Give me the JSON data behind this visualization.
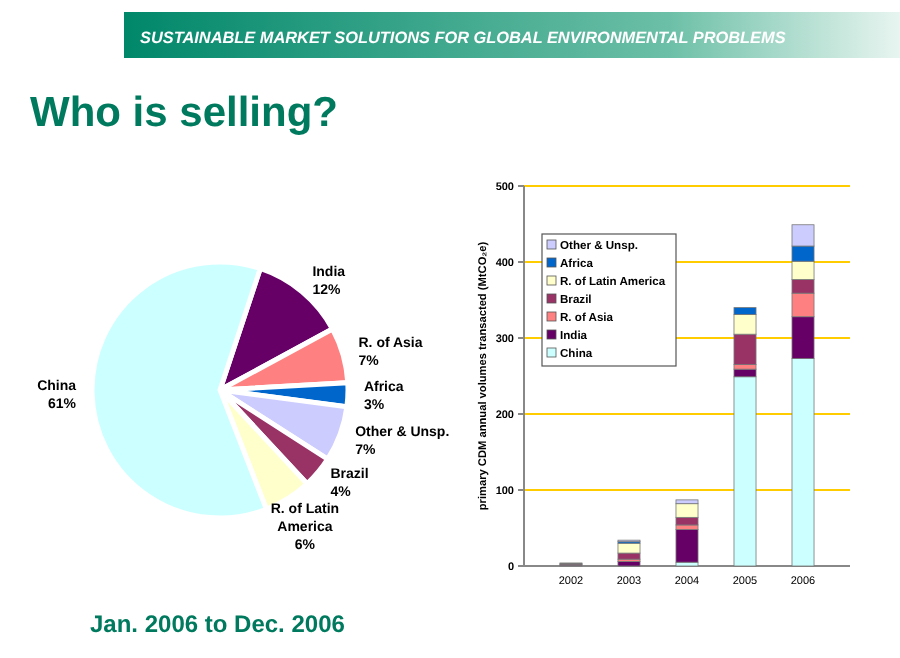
{
  "chart_data": [
    {
      "type": "pie",
      "title": "Who is selling?",
      "subtitle": "Jan. 2006 to Dec. 2006",
      "annotations": [
        "SUSTAINABLE MARKET SOLUTIONS FOR GLOBAL ENVIRONMENTAL PROBLEMS"
      ],
      "categories": [
        "India",
        "R. of Asia",
        "Africa",
        "Other & Unsp.",
        "Brazil",
        "R. of Latin America",
        "China"
      ],
      "values": [
        12,
        7,
        3,
        7,
        4,
        6,
        61
      ],
      "value_labels": [
        "12%",
        "7%",
        "3%",
        "7%",
        "4%",
        "6%",
        "61%"
      ],
      "colors": [
        "#660066",
        "#ff8080",
        "#0066cc",
        "#ccccff",
        "#993366",
        "#ffffcc",
        "#ccffff"
      ]
    },
    {
      "type": "bar",
      "stacked": true,
      "ylabel": "primary CDM annual volumes transacted (MtCO₂e)",
      "categories": [
        "2002",
        "2003",
        "2004",
        "2005",
        "2006"
      ],
      "ylim": [
        0,
        500
      ],
      "yticks": [
        0,
        100,
        200,
        300,
        400,
        500
      ],
      "grid": "y",
      "legend": "top left",
      "series": [
        {
          "name": "China",
          "color": "#ccffff",
          "values": [
            1,
            0,
            5,
            249,
            273
          ]
        },
        {
          "name": "India",
          "color": "#660066",
          "values": [
            1,
            6,
            43,
            10,
            55
          ]
        },
        {
          "name": "R. of Asia",
          "color": "#ff8080",
          "values": [
            0,
            3,
            6,
            6,
            31
          ]
        },
        {
          "name": "Brazil",
          "color": "#993366",
          "values": [
            1,
            8,
            10,
            40,
            18
          ]
        },
        {
          "name": "R. of Latin America",
          "color": "#ffffcc",
          "values": [
            1,
            13,
            18,
            26,
            24
          ]
        },
        {
          "name": "Africa",
          "color": "#0066cc",
          "values": [
            0,
            2,
            null,
            9,
            20
          ]
        },
        {
          "name": "Other & Unsp.",
          "color": "#ccccff",
          "values": [
            0,
            2,
            5,
            null,
            28
          ]
        }
      ]
    }
  ]
}
